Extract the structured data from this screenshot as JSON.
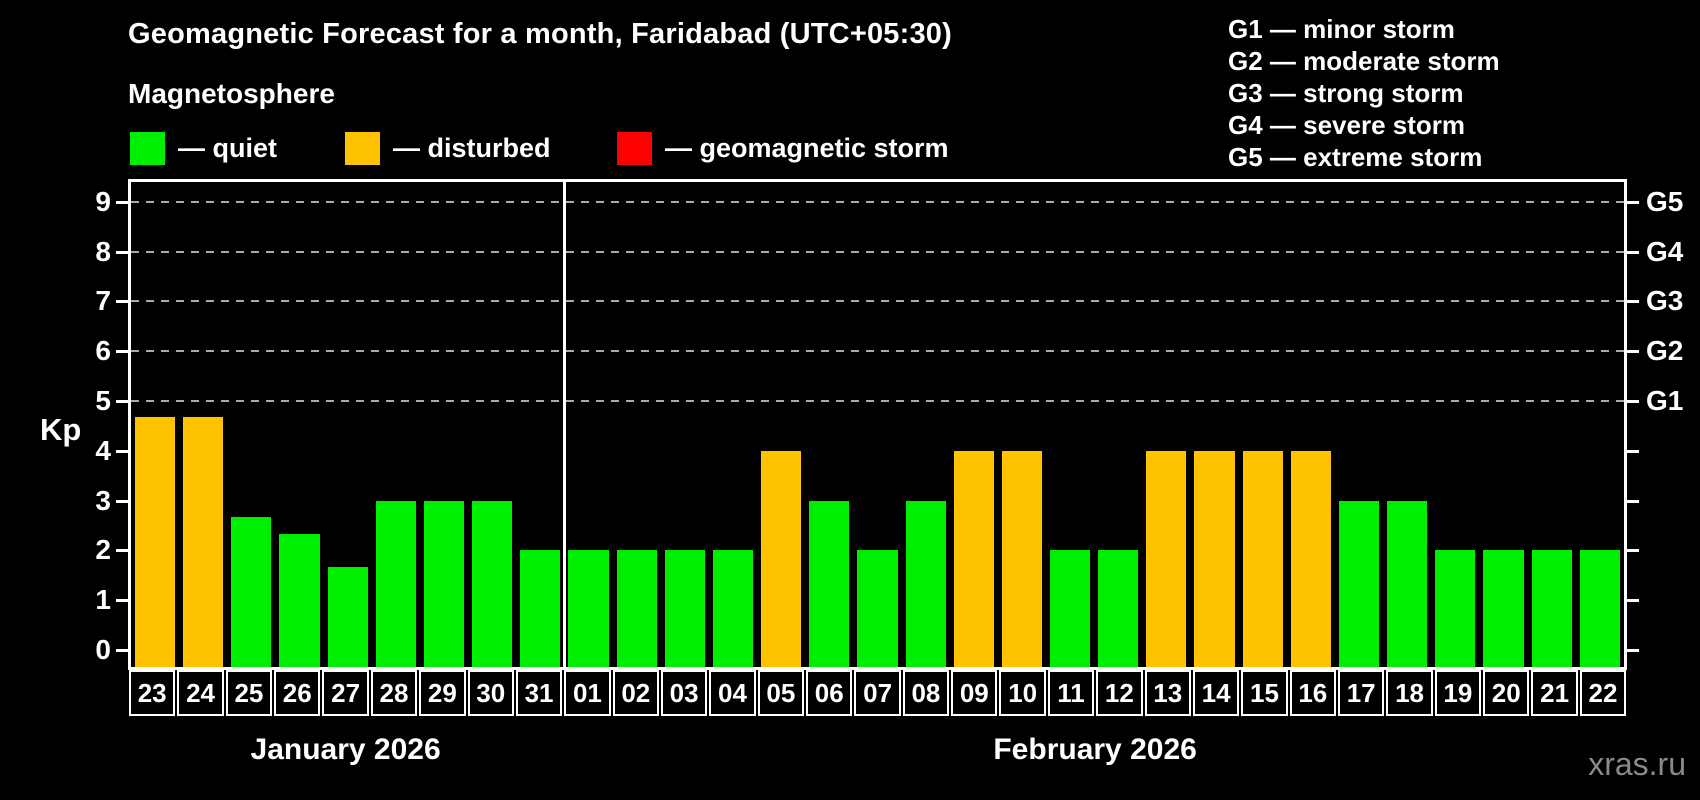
{
  "header": {
    "title": "Geomagnetic Forecast for a month, Faridabad (UTC+05:30)"
  },
  "magnetosphere_legend": {
    "title": "Magnetosphere",
    "items": [
      {
        "label": "— quiet",
        "color": "#00ee00"
      },
      {
        "label": "— disturbed",
        "color": "#ffc200"
      },
      {
        "label": "— geomagnetic storm",
        "color": "#ff0000"
      }
    ]
  },
  "storm_scale_legend": {
    "items": [
      "G1 — minor storm",
      "G2 — moderate storm",
      "G3 — strong storm",
      "G4 — severe storm",
      "G5 — extreme storm"
    ]
  },
  "watermark": "xras.ru",
  "chart_data": {
    "type": "bar",
    "title": "Geomagnetic Forecast for a month, Faridabad (UTC+05:30)",
    "ylabel": "Kp",
    "ylim": [
      0,
      9
    ],
    "y_ticks": [
      0,
      1,
      2,
      3,
      4,
      5,
      6,
      7,
      8,
      9
    ],
    "gridline_levels": [
      5,
      6,
      7,
      8,
      9
    ],
    "grid": "dashed horizontal at Kp 5-9",
    "right_axis": [
      {
        "label": "G1",
        "kp": 5
      },
      {
        "label": "G2",
        "kp": 6
      },
      {
        "label": "G3",
        "kp": 7
      },
      {
        "label": "G4",
        "kp": 8
      },
      {
        "label": "G5",
        "kp": 9
      }
    ],
    "months": [
      {
        "label": "January 2026",
        "days": 9
      },
      {
        "label": "February 2026",
        "days": 22
      }
    ],
    "colors": {
      "quiet": "#00ee00",
      "disturbed": "#ffc200",
      "storm": "#ff0000"
    },
    "days": [
      {
        "day": "23",
        "kp": 4.67,
        "state": "disturbed"
      },
      {
        "day": "24",
        "kp": 4.67,
        "state": "disturbed"
      },
      {
        "day": "25",
        "kp": 2.67,
        "state": "quiet"
      },
      {
        "day": "26",
        "kp": 2.33,
        "state": "quiet"
      },
      {
        "day": "27",
        "kp": 1.67,
        "state": "quiet"
      },
      {
        "day": "28",
        "kp": 3,
        "state": "quiet"
      },
      {
        "day": "29",
        "kp": 3,
        "state": "quiet"
      },
      {
        "day": "30",
        "kp": 3,
        "state": "quiet"
      },
      {
        "day": "31",
        "kp": 2,
        "state": "quiet"
      },
      {
        "day": "01",
        "kp": 2,
        "state": "quiet"
      },
      {
        "day": "02",
        "kp": 2,
        "state": "quiet"
      },
      {
        "day": "03",
        "kp": 2,
        "state": "quiet"
      },
      {
        "day": "04",
        "kp": 2,
        "state": "quiet"
      },
      {
        "day": "05",
        "kp": 4,
        "state": "disturbed"
      },
      {
        "day": "06",
        "kp": 3,
        "state": "quiet"
      },
      {
        "day": "07",
        "kp": 2,
        "state": "quiet"
      },
      {
        "day": "08",
        "kp": 3,
        "state": "quiet"
      },
      {
        "day": "09",
        "kp": 4,
        "state": "disturbed"
      },
      {
        "day": "10",
        "kp": 4,
        "state": "disturbed"
      },
      {
        "day": "11",
        "kp": 2,
        "state": "quiet"
      },
      {
        "day": "12",
        "kp": 2,
        "state": "quiet"
      },
      {
        "day": "13",
        "kp": 4,
        "state": "disturbed"
      },
      {
        "day": "14",
        "kp": 4,
        "state": "disturbed"
      },
      {
        "day": "15",
        "kp": 4,
        "state": "disturbed"
      },
      {
        "day": "16",
        "kp": 4,
        "state": "disturbed"
      },
      {
        "day": "17",
        "kp": 3,
        "state": "quiet"
      },
      {
        "day": "18",
        "kp": 3,
        "state": "quiet"
      },
      {
        "day": "19",
        "kp": 2,
        "state": "quiet"
      },
      {
        "day": "20",
        "kp": 2,
        "state": "quiet"
      },
      {
        "day": "21",
        "kp": 2,
        "state": "quiet"
      },
      {
        "day": "22",
        "kp": 2,
        "state": "quiet"
      }
    ]
  }
}
